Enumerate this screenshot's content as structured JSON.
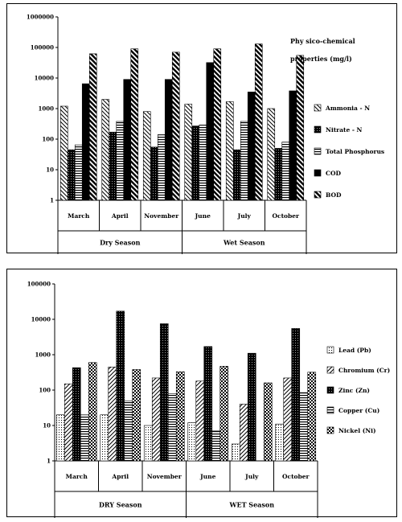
{
  "chart_data": [
    {
      "type": "bar",
      "yscale": "log",
      "ylim": [
        1,
        1000000
      ],
      "yticks": [
        "1",
        "10",
        "100",
        "1000",
        "10000",
        "100000",
        "1000000"
      ],
      "categories": [
        "March",
        "April",
        "November",
        "June",
        "July",
        "October"
      ],
      "groups": [
        {
          "label": "Dry Season",
          "categories": [
            "March",
            "April",
            "November"
          ]
        },
        {
          "label": "Wet Season",
          "categories": [
            "June",
            "July",
            "October"
          ]
        }
      ],
      "legend_title": [
        "Phy sico-chemical",
        "properties (mg/l)"
      ],
      "series": [
        {
          "name": "Ammonia - N",
          "pattern": "diag-back",
          "values": [
            1200,
            2000,
            800,
            1400,
            1700,
            1000
          ]
        },
        {
          "name": "Nitrate - N",
          "pattern": "dense-dots",
          "values": [
            45,
            170,
            55,
            270,
            45,
            50
          ]
        },
        {
          "name": "Total Phosphorus",
          "pattern": "horizontal",
          "values": [
            65,
            380,
            140,
            290,
            380,
            80
          ]
        },
        {
          "name": "COD",
          "pattern": "solid",
          "values": [
            6500,
            9000,
            9000,
            32000,
            3500,
            3800
          ]
        },
        {
          "name": "BOD",
          "pattern": "diag-thick",
          "values": [
            62000,
            90000,
            70000,
            90000,
            130000,
            55000
          ]
        }
      ]
    },
    {
      "type": "bar",
      "yscale": "log",
      "ylim": [
        1,
        100000
      ],
      "yticks": [
        "1",
        "10",
        "100",
        "1000",
        "10000",
        "100000"
      ],
      "categories": [
        "March",
        "April",
        "November",
        "June",
        "July",
        "October"
      ],
      "groups": [
        {
          "label": "DRY Season",
          "categories": [
            "March",
            "April",
            "November"
          ]
        },
        {
          "label": "WET Season",
          "categories": [
            "June",
            "July",
            "October"
          ]
        }
      ],
      "series": [
        {
          "name": "Lead (Pb)",
          "pattern": "sparse-dots",
          "values": [
            20,
            20,
            10,
            12,
            3,
            11
          ]
        },
        {
          "name": "Chromium (Cr)",
          "pattern": "diag-fwd",
          "values": [
            150,
            450,
            220,
            180,
            40,
            220
          ]
        },
        {
          "name": "Zinc (Zn)",
          "pattern": "dense-dots",
          "values": [
            430,
            17000,
            7500,
            1700,
            1100,
            5500
          ]
        },
        {
          "name": "Copper (Cu)",
          "pattern": "horizontal",
          "values": [
            20,
            50,
            80,
            7,
            1,
            85
          ]
        },
        {
          "name": "Nickel (Ni)",
          "pattern": "checker",
          "values": [
            600,
            380,
            330,
            470,
            160,
            320
          ]
        }
      ]
    }
  ]
}
